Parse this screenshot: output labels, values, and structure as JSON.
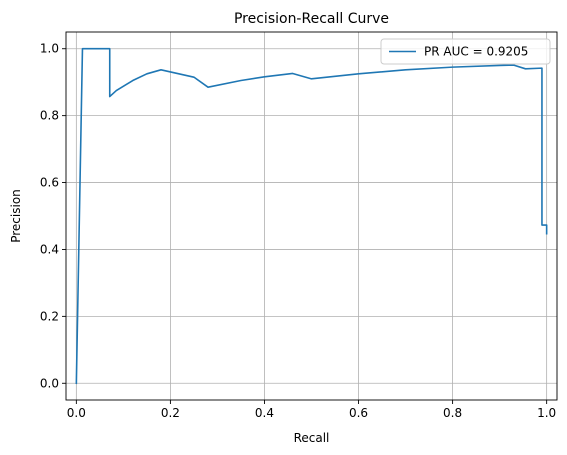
{
  "chart_data": {
    "type": "line",
    "title": "Precision-Recall Curve",
    "xlabel": "Recall",
    "ylabel": "Precision",
    "xlim": [
      -0.022,
      1.022
    ],
    "ylim": [
      -0.05,
      1.05
    ],
    "x_ticks": [
      0.0,
      0.2,
      0.4,
      0.6,
      0.8,
      1.0
    ],
    "x_tick_labels": [
      "0.0",
      "0.2",
      "0.4",
      "0.6",
      "0.8",
      "1.0"
    ],
    "y_ticks": [
      0.0,
      0.2,
      0.4,
      0.6,
      0.8,
      1.0
    ],
    "y_tick_labels": [
      "0.0",
      "0.2",
      "0.4",
      "0.6",
      "0.8",
      "1.0"
    ],
    "grid": true,
    "legend_position": "top-right",
    "series": [
      {
        "name": "PR AUC = 0.9205",
        "color": "#1f77b4",
        "x": [
          0.0,
          0.013,
          0.071,
          0.071,
          0.085,
          0.12,
          0.15,
          0.18,
          0.25,
          0.28,
          0.35,
          0.4,
          0.46,
          0.5,
          0.6,
          0.7,
          0.8,
          0.9,
          0.93,
          0.955,
          0.99,
          0.99,
          1.0,
          1.0
        ],
        "y": [
          0.0,
          1.0,
          1.0,
          0.857,
          0.875,
          0.905,
          0.925,
          0.937,
          0.915,
          0.885,
          0.905,
          0.916,
          0.926,
          0.91,
          0.925,
          0.937,
          0.945,
          0.95,
          0.951,
          0.94,
          0.942,
          0.473,
          0.473,
          0.447
        ]
      }
    ]
  }
}
